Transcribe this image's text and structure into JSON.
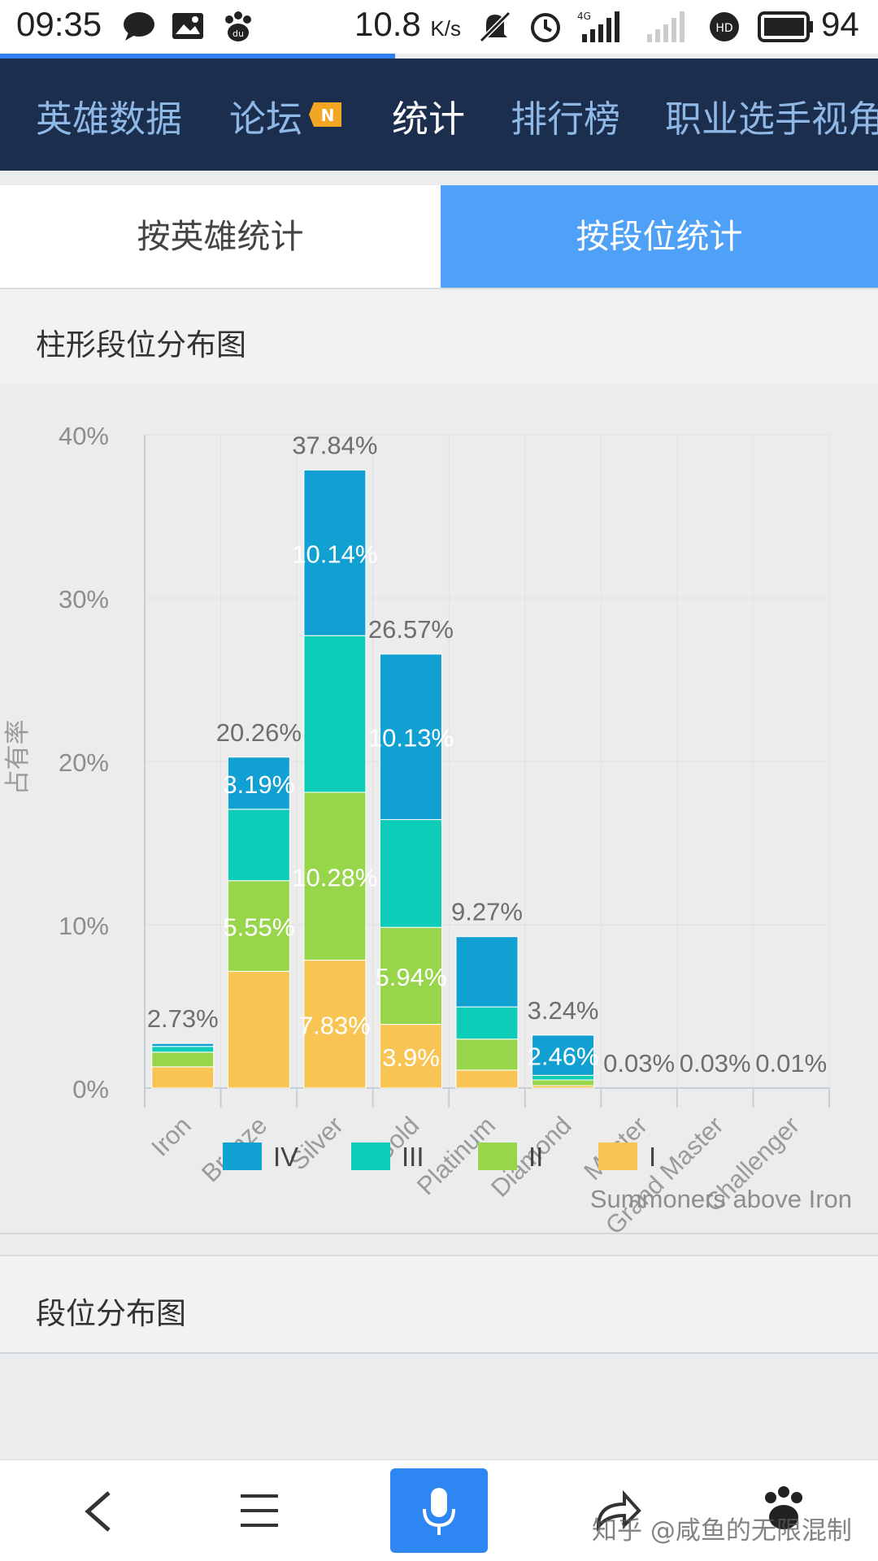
{
  "status_bar": {
    "time": "09:35",
    "net_speed": "10.8",
    "speed_unit": "K/s",
    "net_type": "4G",
    "battery": "94"
  },
  "page_load_progress": 0.45,
  "nav": {
    "items": [
      {
        "label": "英雄数据",
        "active": false
      },
      {
        "label": "论坛",
        "active": false
      },
      {
        "label": "统计",
        "active": true
      },
      {
        "label": "排行榜",
        "active": false
      },
      {
        "label": "职业选手视角",
        "active": false
      }
    ],
    "badge": "N"
  },
  "tabs": [
    {
      "label": "按英雄统计",
      "selected": false
    },
    {
      "label": "按段位统计",
      "selected": true
    }
  ],
  "sections": {
    "bar_chart_title": "柱形段位分布图",
    "distribution_title": "段位分布图"
  },
  "chart_data": {
    "type": "bar",
    "stacked": true,
    "title": "",
    "ylabel": "占有率",
    "ylim": [
      0,
      40
    ],
    "yticks": [
      "0%",
      "10%",
      "20%",
      "30%",
      "40%"
    ],
    "categories": [
      "Iron",
      "Bronze",
      "Silver",
      "Gold",
      "Platinum",
      "Diamond",
      "Master",
      "Grand Master",
      "Challenger"
    ],
    "totals": [
      2.73,
      20.26,
      37.84,
      26.57,
      9.27,
      3.24,
      0.03,
      0.03,
      0.01
    ],
    "total_labels": [
      "2.73%",
      "20.26%",
      "37.84%",
      "26.57%",
      "9.27%",
      "3.24%",
      "0.03%",
      "0.03%",
      "0.01%"
    ],
    "series": [
      {
        "name": "I",
        "color": "#f8c555",
        "values": [
          1.3,
          7.15,
          7.83,
          3.9,
          1.1,
          0.15,
          0,
          0,
          0
        ],
        "labels": [
          "",
          "",
          "7.83%",
          "3.9%",
          "",
          "",
          "",
          "",
          ""
        ]
      },
      {
        "name": "II",
        "color": "#97d54a",
        "values": [
          0.9,
          5.55,
          10.28,
          5.94,
          1.9,
          0.35,
          0,
          0,
          0
        ],
        "labels": [
          "",
          "5.55%",
          "10.28%",
          "5.94%",
          "",
          "",
          "",
          "",
          ""
        ]
      },
      {
        "name": "III",
        "color": "#0ecdb8",
        "values": [
          0.35,
          4.37,
          9.59,
          6.6,
          1.97,
          0.28,
          0,
          0,
          0
        ],
        "labels": [
          "",
          "",
          "",
          "",
          "",
          "",
          "",
          "",
          ""
        ]
      },
      {
        "name": "IV",
        "color": "#11a0d2",
        "values": [
          0.18,
          3.19,
          10.14,
          10.13,
          4.3,
          2.46,
          0,
          0,
          0
        ],
        "labels": [
          "",
          "3.19%",
          "10.14%",
          "10.13%",
          "",
          "2.46%",
          "",
          "",
          ""
        ]
      }
    ],
    "legend_order": [
      "IV",
      "III",
      "II",
      "I"
    ],
    "legend_position": "bottom",
    "footnote": "Summoners above Iron",
    "grid": true
  },
  "bottom_bar": {
    "buttons": [
      "back-icon",
      "menu-icon",
      "microphone-icon",
      "share-icon",
      "paw-icon"
    ]
  },
  "watermark": "知乎 @咸鱼的无限混制"
}
